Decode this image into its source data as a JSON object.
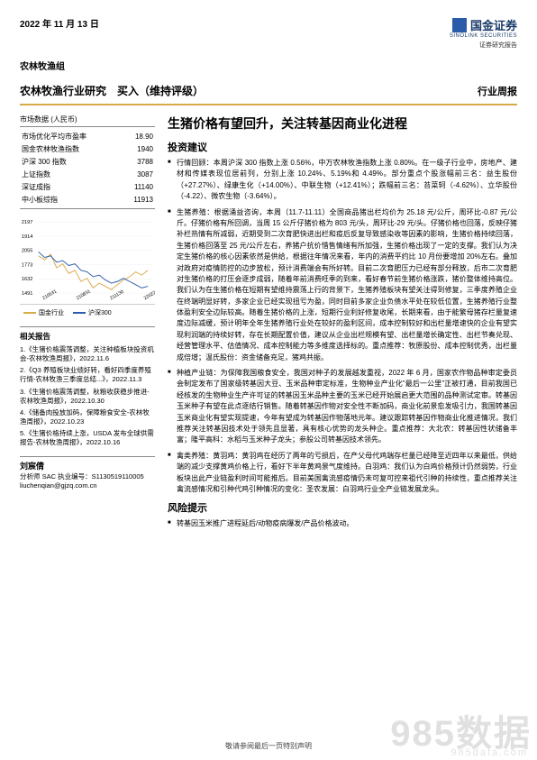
{
  "header": {
    "date": "2022 年 11 月 13 日",
    "logo_cn": "国金证券",
    "logo_en": "SINOLINK SECURITIES",
    "subhead": "证券研究报告",
    "group": "农林牧渔组"
  },
  "title_bar": {
    "left": "农林牧渔行业研究　买入（维持评级）",
    "right": "行业周报"
  },
  "market_data": {
    "title": "市场数据 (人民币)",
    "rows": [
      {
        "label": "市场优化平均市盈率",
        "value": "18.90"
      },
      {
        "label": "国金农林牧渔指数",
        "value": "1940"
      },
      {
        "label": "沪深 300 指数",
        "value": "3788"
      },
      {
        "label": "上证指数",
        "value": "3087"
      },
      {
        "label": "深证成指",
        "value": "11140"
      },
      {
        "label": "中小板综指",
        "value": "11913"
      }
    ]
  },
  "chart": {
    "y_ticks": [
      "2197",
      "1914",
      "2055",
      "1773",
      "1632",
      "1491"
    ],
    "x_ticks": [
      "210531",
      "210831",
      "211130",
      "220228"
    ],
    "series": [
      {
        "name": "国金行业",
        "color": "#d9a94a",
        "points": [
          [
            0,
            40
          ],
          [
            8,
            45
          ],
          [
            16,
            38
          ],
          [
            24,
            55
          ],
          [
            32,
            50
          ],
          [
            40,
            62
          ],
          [
            48,
            58
          ],
          [
            56,
            72
          ],
          [
            64,
            68
          ],
          [
            72,
            80
          ],
          [
            80,
            74
          ],
          [
            88,
            78
          ],
          [
            96,
            82
          ],
          [
            104,
            76
          ],
          [
            112,
            70
          ],
          [
            120,
            66
          ],
          [
            128,
            60
          ],
          [
            136,
            64
          ],
          [
            144,
            58
          ]
        ]
      },
      {
        "name": "沪深300",
        "color": "#2a5caa",
        "points": [
          [
            0,
            35
          ],
          [
            8,
            42
          ],
          [
            16,
            40
          ],
          [
            24,
            48
          ],
          [
            32,
            46
          ],
          [
            40,
            52
          ],
          [
            48,
            50
          ],
          [
            56,
            58
          ],
          [
            64,
            60
          ],
          [
            72,
            66
          ],
          [
            80,
            64
          ],
          [
            88,
            70
          ],
          [
            96,
            74
          ],
          [
            104,
            72
          ],
          [
            112,
            68
          ],
          [
            120,
            72
          ],
          [
            128,
            76
          ],
          [
            136,
            80
          ],
          [
            144,
            78
          ]
        ]
      }
    ],
    "legend": [
      {
        "label": "国金行业",
        "color": "#d9a94a"
      },
      {
        "label": "沪深300",
        "color": "#2a5caa"
      }
    ]
  },
  "related": {
    "title": "相关报告",
    "items": [
      "1.《生猪价格震荡调整，关注种植板块投资机会-农林牧渔周报》，2022.11.6",
      "2.《Q3 养殖板块业绩好转，看好四季度养殖行情-农林牧渔三季度总结...》，2022.11.3",
      "3.《生猪价格震荡调整，秋粮收获稳步推进-农林牧渔周报》，2022.10.30",
      "4.《储备肉投放加码，保障粮食安全-农林牧渔周报》，2022.10.23",
      "5.《生猪价格持续上涨，USDA 发布全球供需报告-农林牧渔周报》，2022.10.16"
    ]
  },
  "analyst": {
    "name": "刘宸倩",
    "cert": "分析师 SAC 执业编号：S1130519110005",
    "email": "liuchenqian@gjzq.com.cn"
  },
  "main": {
    "title": "生猪价格有望回升，关注转基因商业化进程",
    "sections": [
      {
        "heading": "投资建议",
        "bullets": [
          "行情回顾：本周沪深 300 指数上涨 0.56%，中万农林牧渔指数上涨 0.80%。在一级子行业中，房地产、建材和传媒表现位居前列，分别上涨 10.24%、5.19%和 4.49%。部分重点个股涨幅前三名：益生股份（+27.27%）、绿康生化（+14.00%）、中联生物（+12.41%）；跌幅前三名：苔菜轲（-4.62%）、立华股份（-4.22）、微农生物（-3.64%）。",
          "生猪养殖：根据涌益咨询，本周（11.7-11.11）全国商品猪出栏均价为 25.18 元/公斤，周环比-0.87 元/公斤。仔猪价格有所回调，当周 15 公斤仔猪价格为 803 元/头，周环比-29 元/头。仔猪价格也回落，反映仔猪补栏热情有所减弱，近期受到二次育肥快进出栏和疫后反复导致感染收等因素的影响，生猪价格持续回落，生猪价格回落至 25 元/公斤左右，养猪户抗价惜售情绪有所加强，生猪价格出现了一定的支撑。我们认为决定生猪价格的核心因素依然是供给，根据往年情况来看，年内的消费平约比 10 月份要增加 20%左右。叠加对政府对疫情防控的边步放松，预计消费端会有所好转。目前二次育肥压力已经有部分释放，后市二次育肥对生猪价格的打压会逐步成弱，随着年前消费旺季的到来，看好春节前生猪价格涨跌，猪价整体维持高位。我们认为在生猪价格在短期有望维持震荡上行的背景下，生猪养殖板块有望关注得到修复，三季度养殖企业在终端明显好转，多家企业已经实现扭亏为盈，同时目前多家企业负债水平处在较低位置，生猪养殖行业整体盈利安全边际较高。随着生猪价格的上涨，短期行业利好修复收尾，长期来看，由于能繁母猪存栏量复速度边际减缓，预计明年全年生猪养殖行业处在较好的盈利区间，成本控制较好和出栏量增速快的企业有望实现利润端的持续好转，存在长期配置价值，建议从企业出栏规模有望、出栏量增长确定性、出栏节奏兑现、经营管理水平、估值情况、成本控制能力等多维度选择标的。重点推荐：牧原股份、成本控制优秀，出栏量成倍增；温氏股份：资金储备充足，猪鸡共振。",
          "种植产业链：为保障我国粮食安全，我国对种子的发展越发重视，2022 年 6 月，国家农作物品种审定委员会制定发布了国家级转基因大豆、玉米品种审定标准，生物种业产业化\"最后一公里\"正被打通，目前我国已经核发的生物种业生产许可证的转基因玉米品种主要的玉米已经开始展启更大范围的品种测试定审。转基因玉米种子有望在此点逐结行销售。随着转基因作物对安全性不断加码，商业化前景愈发吸引力，我国转基因玉米商业化有望实现提速，今年有望成为转基因作物落地元年。建议跟踪转基因作物商业化推进情况，我们推荐关注转基因技术处于领先且显著，具有核心优势的龙头种企。重点推荐：大北农：转基因性状储备丰富；隆平高科：水稻与玉米种子龙头；参股公司转基因技术领先。",
          "禽类养殖：黄羽鸡：黄羽鸡在经历了两年的亏损后，在产父母代鸡端存栏量已经降至近四年以来最低，供给端的减少支撑黄鸡价格上行，看好下半年黄鸡景气度维持。白羽鸡：我们认为白鸡价格预计仍然弱势，行业板块出此产业链盈利时间可能推后。目前美国禽流感疫情仍未可复可控来祖代引种的持续性，重点推荐关注禽流感情况和引种代鸡引种情况的变化：圣农发展：白羽鸡行业全产业链发展龙头。"
        ]
      },
      {
        "heading": "风险提示",
        "bullets": [
          "转基因玉米推广进程延后/动物疫病爆发/产品价格波动。"
        ]
      }
    ]
  },
  "footer": "敬请参阅最后一页特别声明",
  "watermark": "985数据",
  "watermark_sub": "985data.com"
}
